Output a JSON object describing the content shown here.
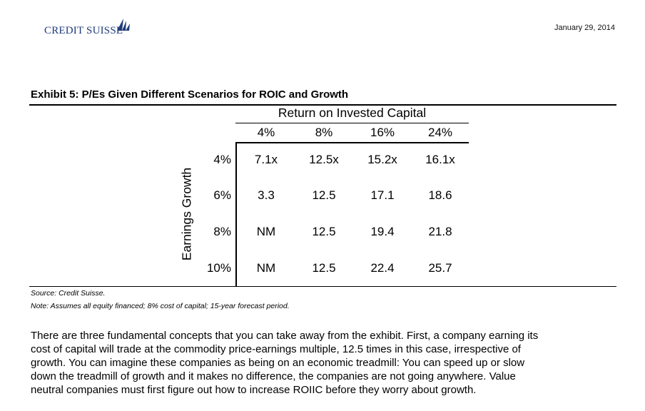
{
  "header": {
    "logo_text": "CREDIT SUISSE",
    "date": "January 29, 2014"
  },
  "exhibit": {
    "title": "Exhibit 5: P/Es Given Different Scenarios for ROIC and Growth",
    "column_group_label": "Return on Invested Capital",
    "row_group_label": "Earnings Growth",
    "columns": [
      "4%",
      "8%",
      "16%",
      "24%"
    ],
    "rows": [
      {
        "label": "4%",
        "values": [
          "7.1x",
          "12.5x",
          "15.2x",
          "16.1x"
        ]
      },
      {
        "label": "6%",
        "values": [
          "3.3",
          "12.5",
          "17.1",
          "18.6"
        ]
      },
      {
        "label": "8%",
        "values": [
          "NM",
          "12.5",
          "19.4",
          "21.8"
        ]
      },
      {
        "label": "10%",
        "values": [
          "NM",
          "12.5",
          "22.4",
          "25.7"
        ]
      }
    ],
    "source": "Source: Credit Suisse.",
    "note": "Note: Assumes all equity financed; 8% cost of capital; 15-year forecast period."
  },
  "body": {
    "lines": [
      "There are three fundamental concepts that you can take away from the exhibit. First, a company earning its",
      "cost of capital will trade at the commodity price-earnings multiple, 12.5 times in this case, irrespective of",
      "growth. You can imagine these companies as being on an economic treadmill: You can speed up or slow",
      "down the treadmill of growth and it makes no difference, the companies are not going anywhere. Value",
      "neutral companies must first figure out how to increase ROIIC before they worry about growth."
    ]
  },
  "colors": {
    "brand": "#1f3c7a"
  }
}
